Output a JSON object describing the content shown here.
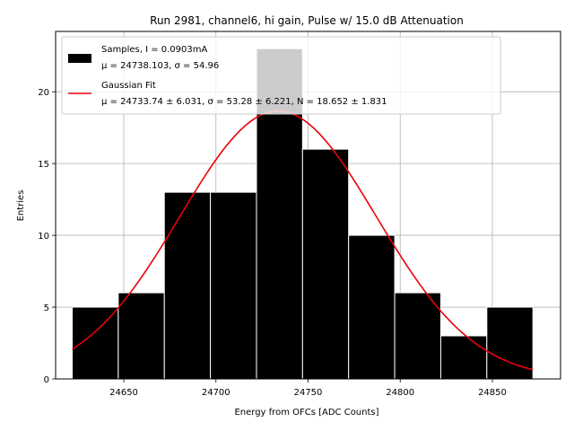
{
  "chart_data": {
    "type": "bar",
    "title": "Run 2981, channel6, hi gain, Pulse w/ 15.0 dB Attenuation",
    "xlabel": "Energy from OFCs [ADC Counts]",
    "ylabel": "Entries",
    "xlim": [
      24613,
      24887
    ],
    "ylim": [
      0,
      24.2
    ],
    "xticks": [
      24650,
      24700,
      24750,
      24800,
      24850
    ],
    "yticks": [
      0,
      5,
      10,
      15,
      20
    ],
    "xtick_labels": [
      "24650",
      "24700",
      "24750",
      "24800",
      "24850"
    ],
    "ytick_labels": [
      "0",
      "5",
      "10",
      "15",
      "20"
    ],
    "grid": true,
    "legend_placement": "top-left",
    "histogram": {
      "name": "Samples, I = 0.0903mA",
      "stats": "μ = 24738.103, σ = 54.96",
      "color": "#000000",
      "bins": [
        {
          "x0": 24622,
          "x1": 24647,
          "count": 5
        },
        {
          "x0": 24647,
          "x1": 24672,
          "count": 6
        },
        {
          "x0": 24672,
          "x1": 24697,
          "count": 13
        },
        {
          "x0": 24697,
          "x1": 24722,
          "count": 13
        },
        {
          "x0": 24722,
          "x1": 24747,
          "count": 23
        },
        {
          "x0": 24747,
          "x1": 24772,
          "count": 16
        },
        {
          "x0": 24772,
          "x1": 24797,
          "count": 10
        },
        {
          "x0": 24797,
          "x1": 24822,
          "count": 6
        },
        {
          "x0": 24822,
          "x1": 24847,
          "count": 3
        },
        {
          "x0": 24847,
          "x1": 24872,
          "count": 5
        }
      ]
    },
    "fit": {
      "name": "Gaussian Fit",
      "stats": "μ = 24733.74 ± 6.031, σ = 53.28 ± 6.221, N = 18.652 ± 1.831",
      "color": "#e8000b",
      "mu": 24733.74,
      "sigma": 53.28,
      "amplitude": 18.652,
      "x_range": [
        24622,
        24872
      ]
    }
  }
}
